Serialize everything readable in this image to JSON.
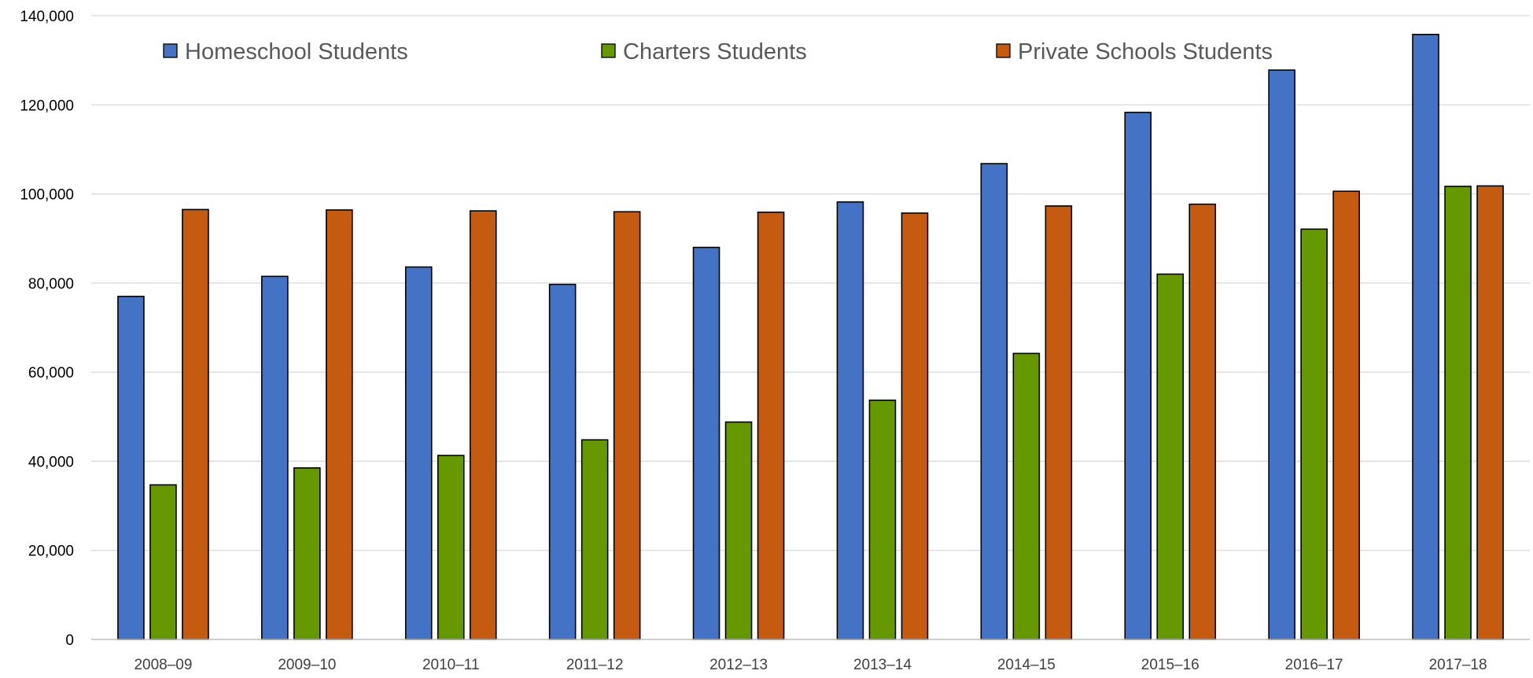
{
  "chart_data": {
    "type": "bar",
    "title": "",
    "xlabel": "",
    "ylabel": "",
    "categories": [
      "2008–09",
      "2009–10",
      "2010–11",
      "2011–12",
      "2012–13",
      "2013–14",
      "2014–15",
      "2015–16",
      "2016–17",
      "2017–18"
    ],
    "series": [
      {
        "name": "Homeschool Students",
        "color": "#4472C4",
        "values": [
          77000,
          81500,
          83600,
          79700,
          88000,
          98200,
          106800,
          118300,
          127800,
          135800
        ]
      },
      {
        "name": "Charters Students",
        "color": "#669900",
        "values": [
          34700,
          38500,
          41300,
          44800,
          48800,
          53700,
          64200,
          82000,
          92100,
          101700
        ]
      },
      {
        "name": "Private Schools Students",
        "color": "#C55A11",
        "values": [
          96500,
          96400,
          96200,
          96000,
          95900,
          95700,
          97300,
          97700,
          100600,
          101800
        ]
      }
    ],
    "ylim": [
      0,
      140000
    ],
    "yticks": [
      0,
      20000,
      40000,
      60000,
      80000,
      100000,
      120000,
      140000
    ],
    "ytick_labels": [
      "0",
      "20,000",
      "40,000",
      "60,000",
      "80,000",
      "100,000",
      "120,000",
      "140,000"
    ],
    "grid": true,
    "legend_position": "top"
  }
}
